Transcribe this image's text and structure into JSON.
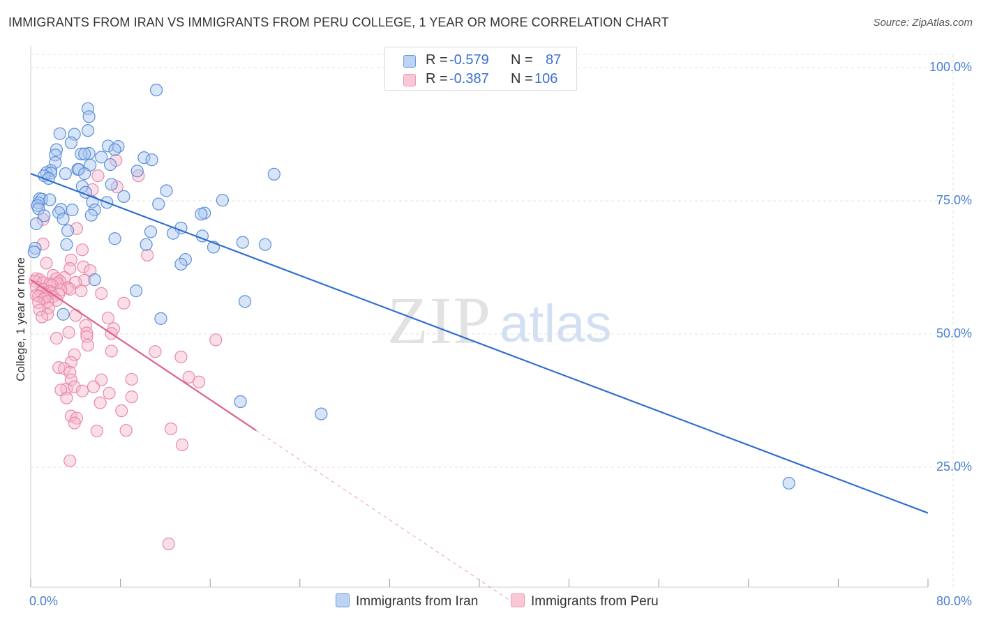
{
  "header": {
    "title": "IMMIGRANTS FROM IRAN VS IMMIGRANTS FROM PERU COLLEGE, 1 YEAR OR MORE CORRELATION CHART",
    "source": "Source: ZipAtlas.com"
  },
  "watermark": {
    "zip": "ZIP",
    "atlas": "atlas"
  },
  "legend": {
    "iran": {
      "r_label": "R =",
      "r_value": "-0.579",
      "n_label": "N =",
      "n_value": "87"
    },
    "peru": {
      "r_label": "R =",
      "r_value": "-0.387",
      "n_label": "N =",
      "n_value": "106"
    }
  },
  "colors": {
    "iran_fill": "#a9c6f0",
    "iran_stroke": "#5b8fd8",
    "iran_line": "#2e6fd0",
    "peru_fill": "#f6b9cb",
    "peru_stroke": "#e889a8",
    "peru_line": "#e0608c",
    "tick_text": "#4a7fd0",
    "grid": "#e0e0e0"
  },
  "chart_data": {
    "type": "scatter",
    "title": "IMMIGRANTS FROM IRAN VS IMMIGRANTS FROM PERU COLLEGE, 1 YEAR OR MORE CORRELATION CHART",
    "ylabel": "College, 1 year or more",
    "xlabel": "",
    "xlim": [
      0,
      80
    ],
    "ylim": [
      0,
      105
    ],
    "x_tick_labels": [
      "0.0%",
      "80.0%"
    ],
    "y_ticks": [
      25,
      50,
      75,
      100
    ],
    "y_tick_labels": [
      "25.0%",
      "50.0%",
      "75.0%",
      "100.0%"
    ],
    "grid": true,
    "legend_position": "top-center",
    "series": [
      {
        "name": "Immigrants from Iran",
        "r": -0.579,
        "n": 87,
        "trend": {
          "x0": 0,
          "y0": 80.1,
          "x1": 80,
          "y1": 16.4
        },
        "points": [
          [
            11.2,
            95.8
          ],
          [
            5.1,
            92.3
          ],
          [
            5.2,
            90.8
          ],
          [
            5.1,
            88.2
          ],
          [
            2.6,
            87.6
          ],
          [
            3.9,
            87.5
          ],
          [
            3.6,
            85.9
          ],
          [
            6.9,
            85.3
          ],
          [
            7.8,
            85.2
          ],
          [
            2.3,
            84.6
          ],
          [
            7.5,
            84.6
          ],
          [
            5.2,
            83.9
          ],
          [
            4.5,
            83.8
          ],
          [
            4.8,
            83.8
          ],
          [
            2.2,
            83.6
          ],
          [
            6.3,
            83.2
          ],
          [
            10.1,
            83.1
          ],
          [
            10.8,
            82.7
          ],
          [
            2.2,
            82.2
          ],
          [
            5.3,
            81.7
          ],
          [
            7.1,
            81.8
          ],
          [
            4.2,
            80.9
          ],
          [
            4.3,
            80.9
          ],
          [
            1.8,
            80.7
          ],
          [
            9.5,
            80.6
          ],
          [
            1.4,
            80.3
          ],
          [
            1.8,
            80.2
          ],
          [
            3.1,
            80.1
          ],
          [
            4.8,
            80.1
          ],
          [
            21.7,
            80.0
          ],
          [
            1.2,
            79.7
          ],
          [
            1.6,
            79.2
          ],
          [
            7.2,
            78.1
          ],
          [
            4.6,
            77.7
          ],
          [
            12.1,
            76.9
          ],
          [
            4.9,
            76.6
          ],
          [
            8.3,
            75.8
          ],
          [
            0.8,
            75.4
          ],
          [
            1.0,
            75.3
          ],
          [
            1.7,
            75.2
          ],
          [
            17.1,
            75.1
          ],
          [
            5.5,
            74.8
          ],
          [
            6.8,
            74.7
          ],
          [
            0.7,
            74.6
          ],
          [
            11.4,
            74.4
          ],
          [
            0.6,
            74.1
          ],
          [
            0.7,
            73.5
          ],
          [
            2.7,
            73.4
          ],
          [
            3.7,
            73.3
          ],
          [
            5.7,
            73.3
          ],
          [
            2.5,
            72.8
          ],
          [
            15.5,
            72.7
          ],
          [
            15.2,
            72.5
          ],
          [
            5.4,
            72.3
          ],
          [
            1.2,
            72.2
          ],
          [
            2.9,
            71.6
          ],
          [
            0.5,
            70.7
          ],
          [
            13.4,
            69.9
          ],
          [
            3.3,
            69.4
          ],
          [
            10.7,
            69.2
          ],
          [
            12.7,
            68.9
          ],
          [
            15.3,
            68.4
          ],
          [
            7.5,
            67.9
          ],
          [
            10.3,
            66.8
          ],
          [
            18.9,
            67.2
          ],
          [
            20.9,
            66.8
          ],
          [
            3.2,
            66.8
          ],
          [
            16.3,
            66.3
          ],
          [
            0.4,
            66.1
          ],
          [
            0.3,
            65.4
          ],
          [
            13.8,
            64.0
          ],
          [
            13.4,
            63.1
          ],
          [
            5.7,
            60.2
          ],
          [
            9.4,
            58.1
          ],
          [
            19.1,
            56.1
          ],
          [
            2.9,
            53.7
          ],
          [
            11.6,
            52.9
          ],
          [
            18.7,
            37.3
          ],
          [
            25.9,
            35.0
          ],
          [
            67.6,
            22.0
          ]
        ]
      },
      {
        "name": "Immigrants from Peru",
        "r": -0.387,
        "n": 106,
        "trend": {
          "x0": 0,
          "y0": 60.2,
          "x1": 20.1,
          "y1": 31.9,
          "dash_to": {
            "x": 43.5,
            "y": -1.1
          }
        },
        "points": [
          [
            7.6,
            82.6
          ],
          [
            9.6,
            79.7
          ],
          [
            6.0,
            79.7
          ],
          [
            7.7,
            77.6
          ],
          [
            5.5,
            77.1
          ],
          [
            1.1,
            71.5
          ],
          [
            4.1,
            69.8
          ],
          [
            1.1,
            66.9
          ],
          [
            4.6,
            65.8
          ],
          [
            10.4,
            64.8
          ],
          [
            3.6,
            63.9
          ],
          [
            1.4,
            63.3
          ],
          [
            4.7,
            62.6
          ],
          [
            3.5,
            62.3
          ],
          [
            5.3,
            61.9
          ],
          [
            2.0,
            61.0
          ],
          [
            3.0,
            60.6
          ],
          [
            2.3,
            60.4
          ],
          [
            0.5,
            60.4
          ],
          [
            0.8,
            60.2
          ],
          [
            4.8,
            60.1
          ],
          [
            0.4,
            59.9
          ],
          [
            2.6,
            59.9
          ],
          [
            4.0,
            59.7
          ],
          [
            1.1,
            59.6
          ],
          [
            2.4,
            59.5
          ],
          [
            1.7,
            59.4
          ],
          [
            1.9,
            59.2
          ],
          [
            0.5,
            58.8
          ],
          [
            3.3,
            58.7
          ],
          [
            1.1,
            58.4
          ],
          [
            3.5,
            58.4
          ],
          [
            2.7,
            58.3
          ],
          [
            4.5,
            58.1
          ],
          [
            1.7,
            58.0
          ],
          [
            0.9,
            57.8
          ],
          [
            1.8,
            57.7
          ],
          [
            6.3,
            57.6
          ],
          [
            2.5,
            57.5
          ],
          [
            1.4,
            57.4
          ],
          [
            0.5,
            57.3
          ],
          [
            0.7,
            57.1
          ],
          [
            2.0,
            57.0
          ],
          [
            1.3,
            56.8
          ],
          [
            1.2,
            56.6
          ],
          [
            2.3,
            56.3
          ],
          [
            1.5,
            56.1
          ],
          [
            0.7,
            55.9
          ],
          [
            8.3,
            55.8
          ],
          [
            1.6,
            54.9
          ],
          [
            0.8,
            54.5
          ],
          [
            1.5,
            53.7
          ],
          [
            4.0,
            53.5
          ],
          [
            1.0,
            53.2
          ],
          [
            6.9,
            53.0
          ],
          [
            4.9,
            51.6
          ],
          [
            7.4,
            51.0
          ],
          [
            3.4,
            50.3
          ],
          [
            5.0,
            50.2
          ],
          [
            7.2,
            50.1
          ],
          [
            5.0,
            49.5
          ],
          [
            2.3,
            49.2
          ],
          [
            16.5,
            48.9
          ],
          [
            5.1,
            47.9
          ],
          [
            7.2,
            46.8
          ],
          [
            11.1,
            46.7
          ],
          [
            3.9,
            46.1
          ],
          [
            13.4,
            45.7
          ],
          [
            3.6,
            44.7
          ],
          [
            2.5,
            43.7
          ],
          [
            3.0,
            43.5
          ],
          [
            3.5,
            42.8
          ],
          [
            14.1,
            41.9
          ],
          [
            6.3,
            41.4
          ],
          [
            3.6,
            41.4
          ],
          [
            9.0,
            41.5
          ],
          [
            15.0,
            41.0
          ],
          [
            5.6,
            40.1
          ],
          [
            3.2,
            39.7
          ],
          [
            3.9,
            40.1
          ],
          [
            4.6,
            39.3
          ],
          [
            2.7,
            39.5
          ],
          [
            7.0,
            38.9
          ],
          [
            9.0,
            38.2
          ],
          [
            3.2,
            38.0
          ],
          [
            6.2,
            37.1
          ],
          [
            8.1,
            35.6
          ],
          [
            3.6,
            34.6
          ],
          [
            4.1,
            34.2
          ],
          [
            3.9,
            33.3
          ],
          [
            12.5,
            32.2
          ],
          [
            8.5,
            31.9
          ],
          [
            5.9,
            31.8
          ],
          [
            13.5,
            29.2
          ],
          [
            3.5,
            26.2
          ],
          [
            12.3,
            10.6
          ]
        ]
      }
    ]
  }
}
